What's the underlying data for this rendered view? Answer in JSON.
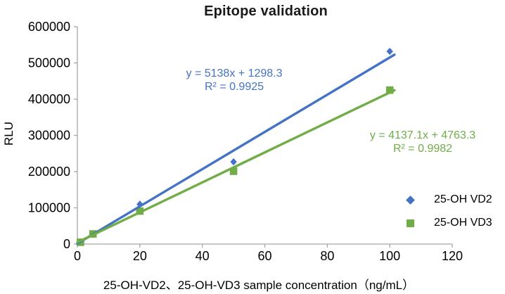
{
  "window": {
    "background": "#FFFFFF"
  },
  "chart_data": {
    "type": "scatter",
    "title": "Epitope validation",
    "xlabel": "25-OH-VD2、25-OH-VD3 sample concentration（ng/mL）",
    "ylabel": "RLU",
    "xlim": [
      0,
      120
    ],
    "ylim": [
      0,
      600000
    ],
    "xticks": [
      0,
      20,
      40,
      60,
      80,
      100,
      120
    ],
    "yticks": [
      0,
      100000,
      200000,
      300000,
      400000,
      500000,
      600000
    ],
    "grid": false,
    "axis_color": "#A6A6A6",
    "text_color": "#000000",
    "legend_position": "right",
    "series": [
      {
        "name": "25-OH VD2",
        "marker": "diamond",
        "color": "#4472C4",
        "x": [
          1,
          5,
          20,
          50,
          100
        ],
        "y": [
          6400,
          27000,
          110000,
          227000,
          532000
        ],
        "trendline": {
          "slope": 5138,
          "intercept": 1298.3,
          "x_range": [
            0,
            101.5
          ],
          "equation_label": "y = 5138x + 1298.3",
          "r2_label": "R² = 0.9925"
        }
      },
      {
        "name": "25-OH VD3",
        "marker": "square",
        "color": "#70AD47",
        "x": [
          1,
          5,
          20,
          50,
          100
        ],
        "y": [
          5000,
          28000,
          91000,
          201000,
          425000
        ],
        "trendline": {
          "slope": 4137.1,
          "intercept": 4763.3,
          "x_range": [
            0,
            101.5
          ],
          "equation_label": "y = 4137.1x + 4763.3",
          "r2_label": "R² = 0.9982"
        }
      }
    ]
  }
}
